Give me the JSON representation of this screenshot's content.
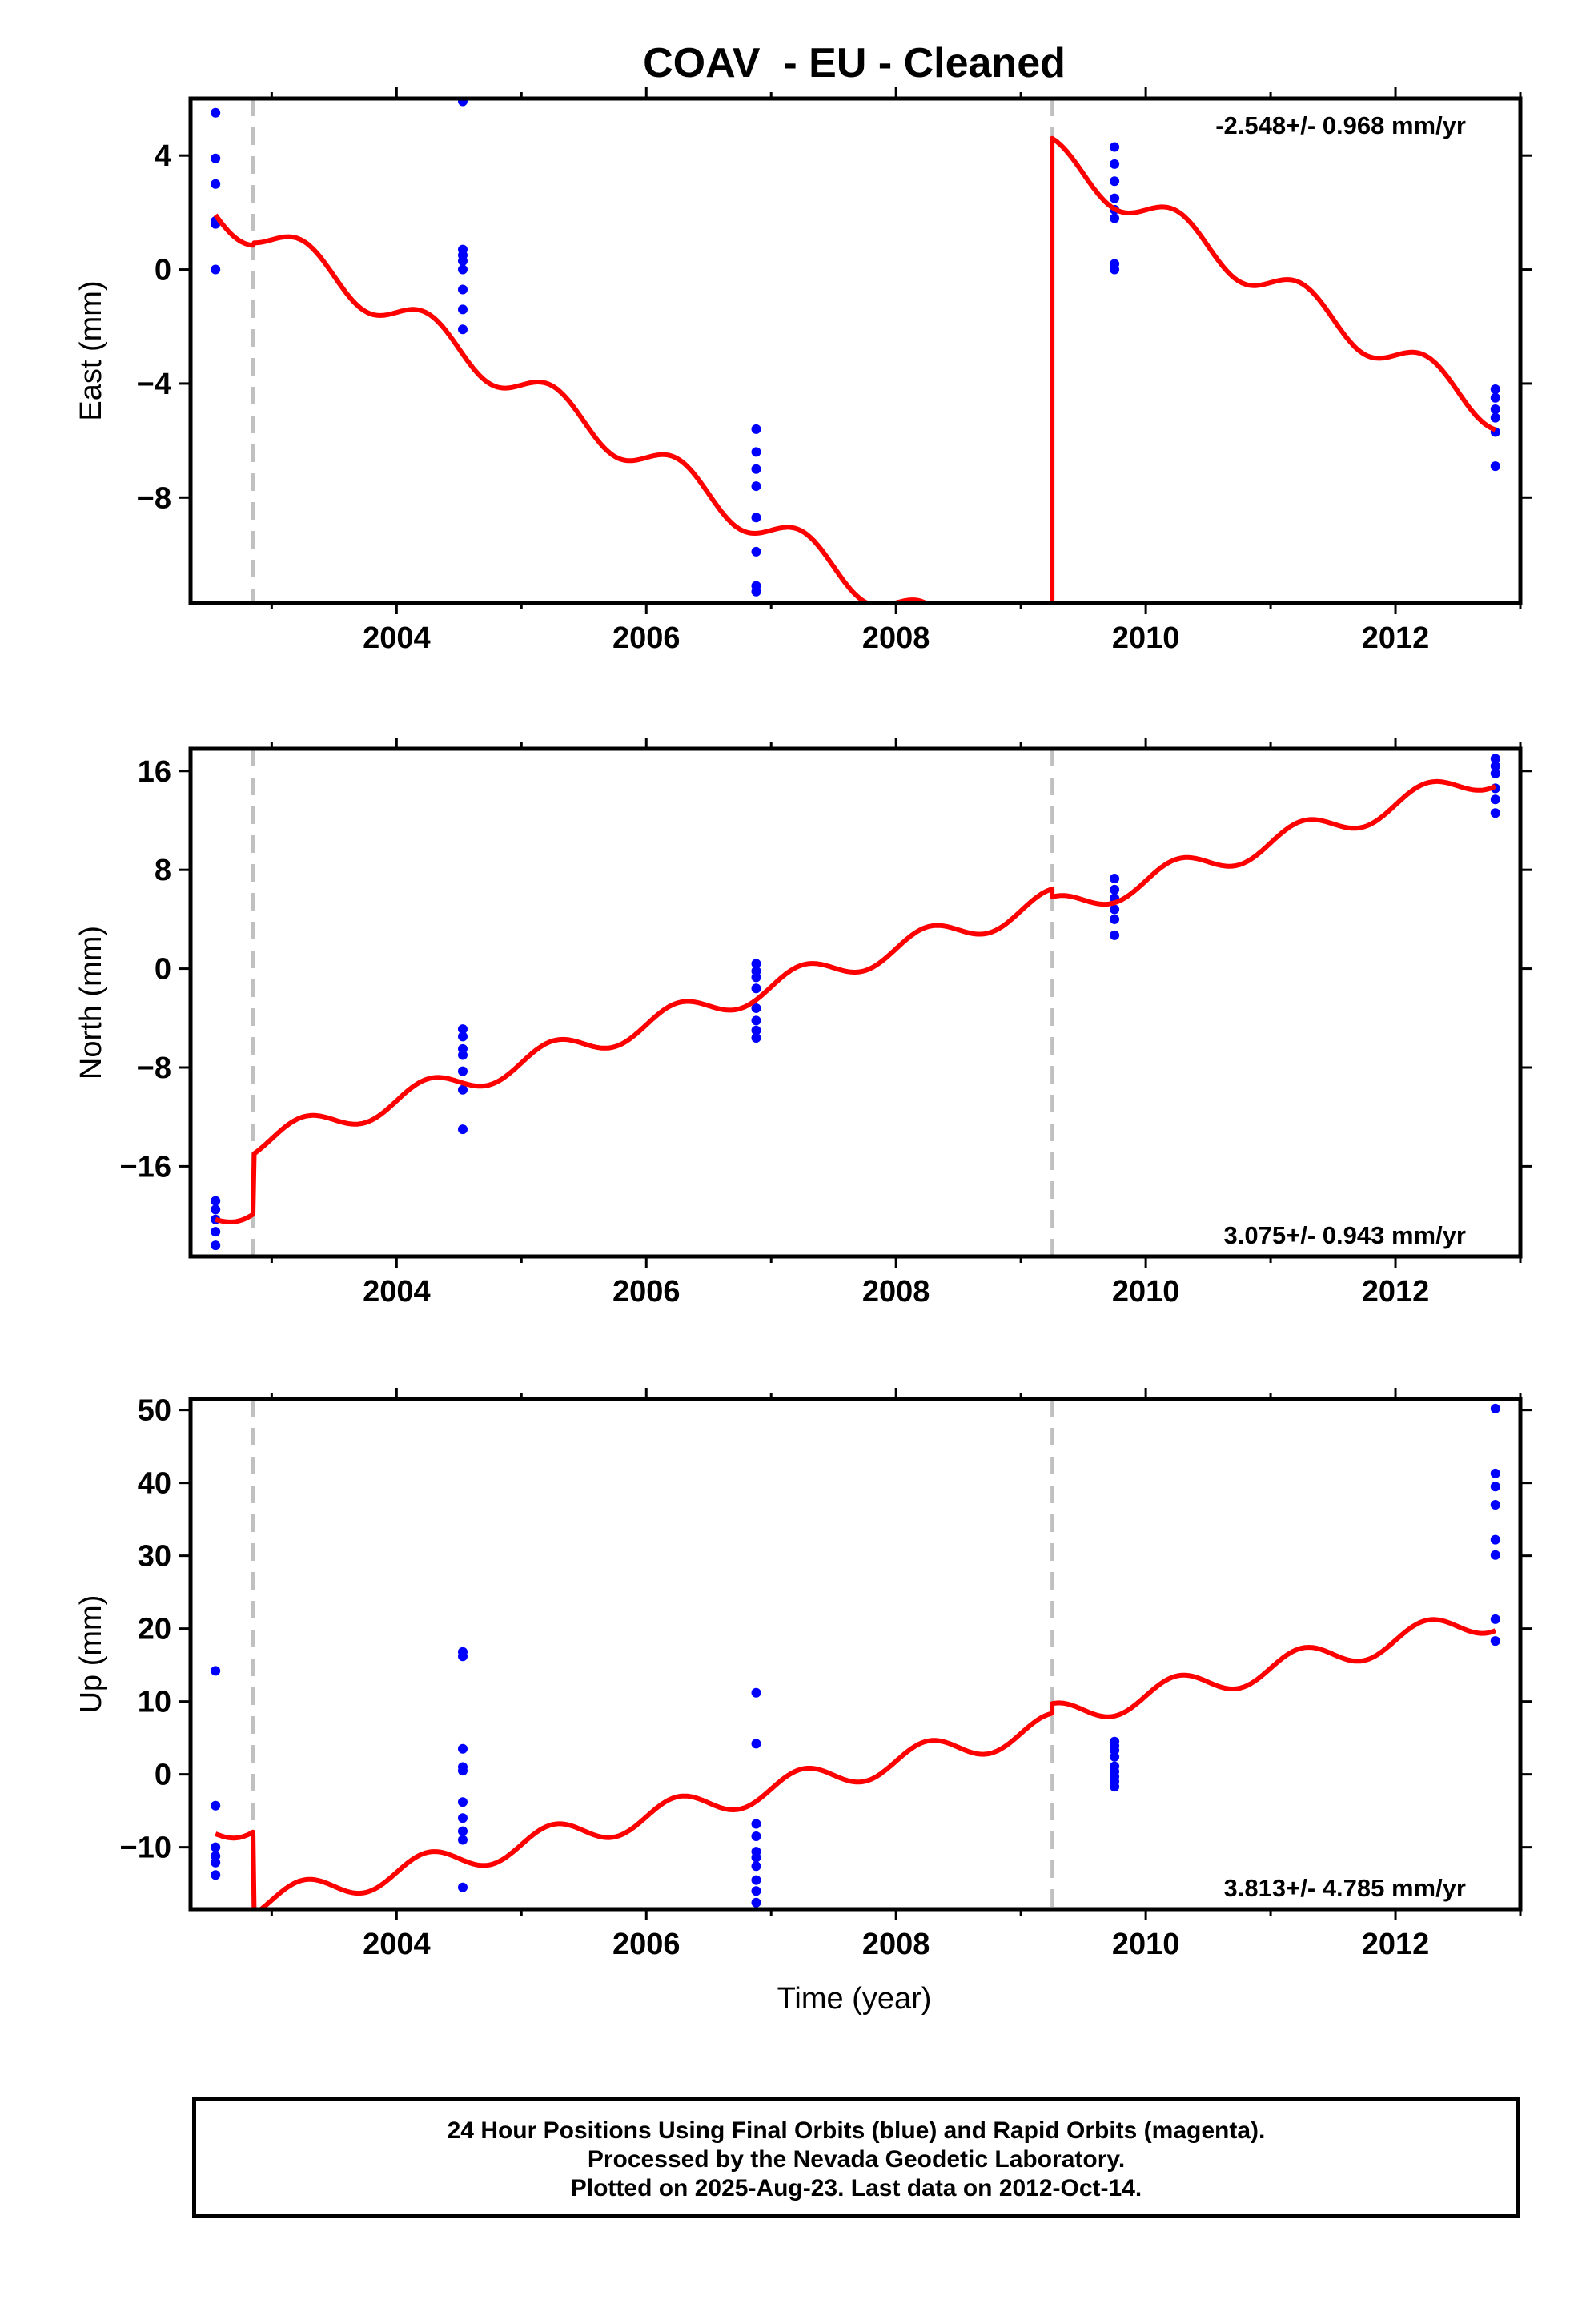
{
  "title": "COAV  - EU - Cleaned",
  "xlabel": "Time (year)",
  "caption": [
    "24 Hour Positions Using Final Orbits (blue) and Rapid Orbits (magenta).",
    "Processed by the Nevada Geodetic Laboratory.",
    "Plotted on 2025-Aug-23. Last data on 2012-Oct-14."
  ],
  "colors": {
    "data": "#0000ff",
    "model": "#ff0000",
    "step": "#c0c0c0"
  },
  "chart_data": [
    {
      "type": "scatter",
      "name": "east",
      "ylabel": "East (mm)",
      "rate_label": "-2.548+/- 0.968 mm/yr",
      "rate_position": "top-right",
      "xlim": [
        2002.35,
        2013.0
      ],
      "ylim": [
        -11.7,
        6.0
      ],
      "xticks": [
        2004,
        2006,
        2008,
        2010,
        2012
      ],
      "xtick_labels": [
        "2004",
        "2006",
        "2008",
        "2010",
        "2012"
      ],
      "yticks": [
        4,
        0,
        -4,
        -8
      ],
      "ytick_labels": [
        "4",
        "0",
        "−4",
        "−8"
      ],
      "steps": [
        2002.85,
        2009.25
      ],
      "points": [
        [
          2002.55,
          5.5
        ],
        [
          2002.55,
          3.9
        ],
        [
          2002.55,
          3.0
        ],
        [
          2002.55,
          1.7
        ],
        [
          2002.55,
          1.6
        ],
        [
          2002.55,
          0.0
        ],
        [
          2004.53,
          5.9
        ],
        [
          2004.53,
          0.7
        ],
        [
          2004.53,
          0.5
        ],
        [
          2004.53,
          0.3
        ],
        [
          2004.53,
          0.0
        ],
        [
          2004.53,
          -0.7
        ],
        [
          2004.53,
          -1.4
        ],
        [
          2004.53,
          -2.1
        ],
        [
          2006.88,
          -5.6
        ],
        [
          2006.88,
          -6.4
        ],
        [
          2006.88,
          -7.0
        ],
        [
          2006.88,
          -7.6
        ],
        [
          2006.88,
          -8.7
        ],
        [
          2006.88,
          -9.9
        ],
        [
          2006.88,
          -11.1
        ],
        [
          2006.88,
          -11.3
        ],
        [
          2009.75,
          4.3
        ],
        [
          2009.75,
          3.7
        ],
        [
          2009.75,
          3.1
        ],
        [
          2009.75,
          2.5
        ],
        [
          2009.75,
          2.1
        ],
        [
          2009.75,
          1.8
        ],
        [
          2009.75,
          0.2
        ],
        [
          2009.75,
          0.0
        ],
        [
          2012.8,
          -4.2
        ],
        [
          2012.8,
          -4.5
        ],
        [
          2012.8,
          -4.9
        ],
        [
          2012.8,
          -5.2
        ],
        [
          2012.8,
          -5.7
        ],
        [
          2012.8,
          -6.9
        ]
      ],
      "model": {
        "segments": [
          {
            "t0": 2002.55,
            "t1": 2002.85,
            "ref": 2002.55,
            "v0": 2.1
          },
          {
            "t0": 2002.86,
            "t1": 2009.25,
            "ref": 2002.86,
            "v0": 1.4
          },
          {
            "t0": 2009.25,
            "t1": 2012.8,
            "ref": 2009.25,
            "v0": 4.0
          }
        ],
        "rate": -2.548,
        "sin": 0.6,
        "cos": 0.0
      }
    },
    {
      "type": "scatter",
      "name": "north",
      "ylabel": "North (mm)",
      "rate_label": "3.075+/- 0.943 mm/yr",
      "rate_position": "bottom-right",
      "xlim": [
        2002.35,
        2013.0
      ],
      "ylim": [
        -23.3,
        17.8
      ],
      "xticks": [
        2004,
        2006,
        2008,
        2010,
        2012
      ],
      "xtick_labels": [
        "2004",
        "2006",
        "2008",
        "2010",
        "2012"
      ],
      "yticks": [
        16,
        8,
        0,
        -8,
        -16
      ],
      "ytick_labels": [
        "16",
        "8",
        "0",
        "−8",
        "−16"
      ],
      "steps": [
        2002.85,
        2009.25
      ],
      "points": [
        [
          2002.55,
          -18.8
        ],
        [
          2002.55,
          -19.5
        ],
        [
          2002.55,
          -20.3
        ],
        [
          2002.55,
          -21.3
        ],
        [
          2002.55,
          -22.4
        ],
        [
          2004.53,
          -4.9
        ],
        [
          2004.53,
          -5.5
        ],
        [
          2004.53,
          -6.5
        ],
        [
          2004.53,
          -7.0
        ],
        [
          2004.53,
          -8.3
        ],
        [
          2004.53,
          -9.8
        ],
        [
          2004.53,
          -13.0
        ],
        [
          2006.88,
          -0.2
        ],
        [
          2006.88,
          0.4
        ],
        [
          2006.88,
          -0.7
        ],
        [
          2006.88,
          -1.6
        ],
        [
          2006.88,
          -3.2
        ],
        [
          2006.88,
          -4.2
        ],
        [
          2006.88,
          -5.0
        ],
        [
          2006.88,
          -5.6
        ],
        [
          2009.75,
          7.3
        ],
        [
          2009.75,
          6.4
        ],
        [
          2009.75,
          5.7
        ],
        [
          2009.75,
          4.8
        ],
        [
          2009.75,
          4.0
        ],
        [
          2009.75,
          2.7
        ],
        [
          2012.8,
          17.0
        ],
        [
          2012.8,
          16.4
        ],
        [
          2012.8,
          15.8
        ],
        [
          2012.8,
          14.6
        ],
        [
          2012.8,
          13.7
        ],
        [
          2012.8,
          12.6
        ]
      ],
      "model": {
        "segments": [
          {
            "t0": 2002.55,
            "t1": 2002.85,
            "ref": 2002.55,
            "v0": -20.0
          },
          {
            "t0": 2002.86,
            "t1": 2009.25,
            "ref": 2002.86,
            "v0": -14.2
          },
          {
            "t0": 2009.25,
            "t1": 2012.8,
            "ref": 2009.25,
            "v0": 4.8
          }
        ],
        "rate": 3.075,
        "sin": 1.0,
        "cos": 0.0
      }
    },
    {
      "type": "scatter",
      "name": "up",
      "ylabel": "Up (mm)",
      "rate_label": "3.813+/- 4.785 mm/yr",
      "rate_position": "bottom-right",
      "xlim": [
        2002.35,
        2013.0
      ],
      "ylim": [
        -18.5,
        51.5
      ],
      "xticks": [
        2004,
        2006,
        2008,
        2010,
        2012
      ],
      "xtick_labels": [
        "2004",
        "2006",
        "2008",
        "2010",
        "2012"
      ],
      "yticks": [
        50,
        40,
        30,
        20,
        10,
        0,
        -10
      ],
      "ytick_labels": [
        "50",
        "40",
        "30",
        "20",
        "10",
        "0",
        "−10"
      ],
      "steps": [
        2002.85,
        2009.25
      ],
      "points": [
        [
          2002.55,
          14.2
        ],
        [
          2002.55,
          -4.3
        ],
        [
          2002.55,
          -10.0
        ],
        [
          2002.55,
          -11.2
        ],
        [
          2002.55,
          -12.1
        ],
        [
          2002.55,
          -13.8
        ],
        [
          2004.53,
          16.8
        ],
        [
          2004.53,
          16.2
        ],
        [
          2004.53,
          3.5
        ],
        [
          2004.53,
          1.0
        ],
        [
          2004.53,
          0.5
        ],
        [
          2004.53,
          -3.8
        ],
        [
          2004.53,
          -6.0
        ],
        [
          2004.53,
          -7.8
        ],
        [
          2004.53,
          -9.0
        ],
        [
          2004.53,
          -15.5
        ],
        [
          2006.88,
          11.2
        ],
        [
          2006.88,
          4.2
        ],
        [
          2006.88,
          -6.8
        ],
        [
          2006.88,
          -8.5
        ],
        [
          2006.88,
          -10.6
        ],
        [
          2006.88,
          -11.4
        ],
        [
          2006.88,
          -12.6
        ],
        [
          2006.88,
          -14.5
        ],
        [
          2006.88,
          -16.0
        ],
        [
          2006.88,
          -17.6
        ],
        [
          2009.75,
          4.5
        ],
        [
          2009.75,
          3.9
        ],
        [
          2009.75,
          3.3
        ],
        [
          2009.75,
          2.4
        ],
        [
          2009.75,
          1.1
        ],
        [
          2009.75,
          0.4
        ],
        [
          2009.75,
          -0.3
        ],
        [
          2009.75,
          -1.0
        ],
        [
          2009.75,
          -1.7
        ],
        [
          2012.8,
          50.2
        ],
        [
          2012.8,
          41.3
        ],
        [
          2012.8,
          39.5
        ],
        [
          2012.8,
          37.0
        ],
        [
          2012.8,
          32.2
        ],
        [
          2012.8,
          30.1
        ],
        [
          2012.8,
          21.3
        ],
        [
          2012.8,
          18.3
        ]
      ],
      "model": {
        "segments": [
          {
            "t0": 2002.55,
            "t1": 2002.85,
            "ref": 2002.55,
            "v0": -7.6
          },
          {
            "t0": 2002.86,
            "t1": 2009.25,
            "ref": 2002.86,
            "v0": -17.8
          },
          {
            "t0": 2009.25,
            "t1": 2012.8,
            "ref": 2009.25,
            "v0": 7.9
          }
        ],
        "rate": 3.813,
        "sin": 1.8,
        "cos": 0.0
      }
    }
  ]
}
